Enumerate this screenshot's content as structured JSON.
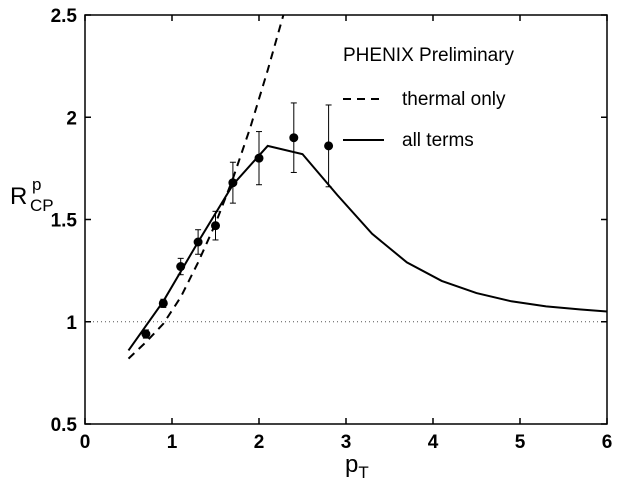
{
  "chart_data": {
    "type": "line",
    "title": "",
    "xlabel": {
      "main": "p",
      "sub": "T"
    },
    "ylabel": {
      "main": "R",
      "sup": "p",
      "sub": "CP"
    },
    "xlim": [
      0,
      6
    ],
    "ylim": [
      0.5,
      2.5
    ],
    "xticks": [
      0,
      1,
      2,
      3,
      4,
      5,
      6
    ],
    "yticks": [
      0.5,
      1,
      1.5,
      2,
      2.5
    ],
    "xtick_labels": [
      "0",
      "1",
      "2",
      "3",
      "4",
      "5",
      "6"
    ],
    "ytick_labels": [
      "0.5",
      "1",
      "1.5",
      "2",
      "2.5"
    ],
    "grid": false,
    "reference_line": {
      "y": 1,
      "style": "dotted"
    },
    "legend": {
      "placement": "top-right",
      "header": "PHENIX Preliminary",
      "entries": [
        "thermal only",
        "all terms"
      ]
    },
    "series": [
      {
        "name": "thermal only",
        "style": "dashed",
        "x": [
          0.5,
          0.7,
          0.9,
          1.1,
          1.3,
          1.5,
          1.7,
          1.9,
          2.1,
          2.28
        ],
        "y": [
          0.82,
          0.9,
          0.99,
          1.12,
          1.29,
          1.48,
          1.7,
          1.95,
          2.23,
          2.5
        ]
      },
      {
        "name": "all terms",
        "style": "solid",
        "x": [
          0.5,
          0.9,
          1.3,
          1.7,
          2.1,
          2.5,
          2.9,
          3.3,
          3.7,
          4.1,
          4.5,
          4.9,
          5.3,
          5.7,
          6.0
        ],
        "y": [
          0.86,
          1.1,
          1.39,
          1.67,
          1.86,
          1.82,
          1.62,
          1.43,
          1.29,
          1.2,
          1.14,
          1.1,
          1.075,
          1.06,
          1.05
        ]
      },
      {
        "name": "PHENIX Preliminary",
        "style": "markers",
        "x": [
          0.7,
          0.9,
          1.1,
          1.3,
          1.5,
          1.7,
          2.0,
          2.4,
          2.8
        ],
        "y": [
          0.94,
          1.09,
          1.27,
          1.39,
          1.47,
          1.68,
          1.8,
          1.9,
          1.86
        ],
        "yerr": [
          0.02,
          0.02,
          0.04,
          0.06,
          0.07,
          0.1,
          0.13,
          0.17,
          0.2
        ]
      }
    ]
  }
}
